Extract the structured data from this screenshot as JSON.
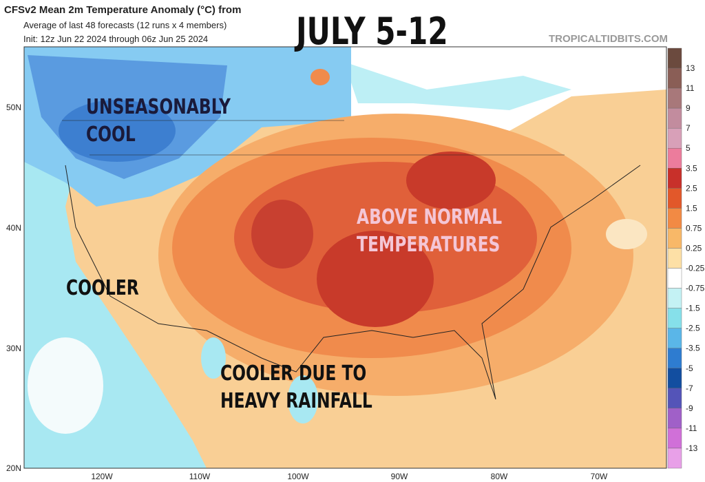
{
  "header": {
    "title": "CFSv2 Mean 2m Temperature Anomaly (°C) from",
    "subtitle": "Average of last 48 forecasts (12 runs x 4 members)",
    "init": "Init: 12z Jun 22 2024 through 06z Jun 25 2024",
    "watermark": "TROPICALTIDBITS.COM"
  },
  "overlay_title": "JULY 5-12",
  "annotations": [
    {
      "lines": [
        "UNSEASONABLY",
        "COOL"
      ]
    },
    {
      "lines": [
        "ABOVE NORMAL",
        "TEMPERATURES"
      ]
    },
    {
      "lines": [
        "COOLER"
      ]
    },
    {
      "lines": [
        "COOLER DUE TO",
        "HEAVY RAINFALL"
      ]
    }
  ],
  "map": {
    "lat_labels": [
      "50N",
      "40N",
      "30N",
      "20N"
    ],
    "lon_labels": [
      "120W",
      "110W",
      "100W",
      "90W",
      "80W",
      "70W"
    ]
  },
  "colorbar": {
    "labels": [
      "13",
      "11",
      "9",
      "7",
      "5",
      "3.5",
      "2.5",
      "1.5",
      "0.75",
      "0.25",
      "-0.25",
      "-0.75",
      "-1.5",
      "-2.5",
      "-3.5",
      "-5",
      "-7",
      "-9",
      "-11",
      "-13"
    ]
  }
}
